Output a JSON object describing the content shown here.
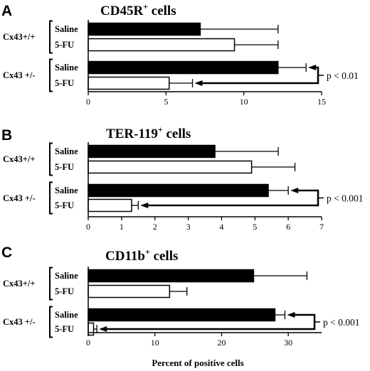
{
  "chart_data": [
    {
      "type": "bar",
      "orientation": "horizontal",
      "panel": "A",
      "title": "CD45R",
      "title_sup": "+",
      "title_suffix": " cells",
      "groups": [
        {
          "label": "Cx43+/+",
          "rows": [
            {
              "label": "Saline",
              "value": 7.2,
              "error": 5.0,
              "fill": "black"
            },
            {
              "label": "5-FU",
              "value": 9.4,
              "error": 2.8,
              "fill": "white"
            }
          ]
        },
        {
          "label": "Cx43 +/-",
          "rows": [
            {
              "label": "Saline",
              "value": 12.2,
              "error": 1.8,
              "fill": "black"
            },
            {
              "label": "5-FU",
              "value": 5.2,
              "error": 1.5,
              "fill": "white"
            }
          ]
        }
      ],
      "xlim": [
        0,
        15
      ],
      "xticks": [
        "0",
        "5",
        "10",
        "15"
      ],
      "significance": "p < 0.01"
    },
    {
      "type": "bar",
      "orientation": "horizontal",
      "panel": "B",
      "title": "TER-119",
      "title_sup": "+",
      "title_suffix": " cells",
      "groups": [
        {
          "label": "Cx43+/+",
          "rows": [
            {
              "label": "Saline",
              "value": 3.8,
              "error": 1.9,
              "fill": "black"
            },
            {
              "label": "5-FU",
              "value": 4.9,
              "error": 1.3,
              "fill": "white"
            }
          ]
        },
        {
          "label": "Cx43 +/-",
          "rows": [
            {
              "label": "Saline",
              "value": 5.4,
              "error": 0.6,
              "fill": "black"
            },
            {
              "label": "5-FU",
              "value": 1.3,
              "error": 0.2,
              "fill": "white"
            }
          ]
        }
      ],
      "xlim": [
        0,
        7
      ],
      "xticks": [
        "0",
        "1",
        "2",
        "3",
        "4",
        "5",
        "6",
        "7"
      ],
      "significance": "p < 0.001"
    },
    {
      "type": "bar",
      "orientation": "horizontal",
      "panel": "C",
      "title": "CD11b",
      "title_sup": "+",
      "title_suffix": " cells",
      "groups": [
        {
          "label": "Cx43+/+",
          "rows": [
            {
              "label": "Saline",
              "value": 24.8,
              "error": 8.0,
              "fill": "black"
            },
            {
              "label": "5-FU",
              "value": 12.2,
              "error": 2.6,
              "fill": "white"
            }
          ]
        },
        {
          "label": "Cx43 +/-",
          "rows": [
            {
              "label": "Saline",
              "value": 28.0,
              "error": 1.5,
              "fill": "black"
            },
            {
              "label": "5-FU",
              "value": 0.8,
              "error": 0.5,
              "fill": "white"
            }
          ]
        }
      ],
      "xlim": [
        0,
        35
      ],
      "xticks": [
        "0",
        "10",
        "20",
        "30"
      ],
      "xlabel": "Percent of positive cells",
      "significance": "p < 0.001"
    }
  ]
}
